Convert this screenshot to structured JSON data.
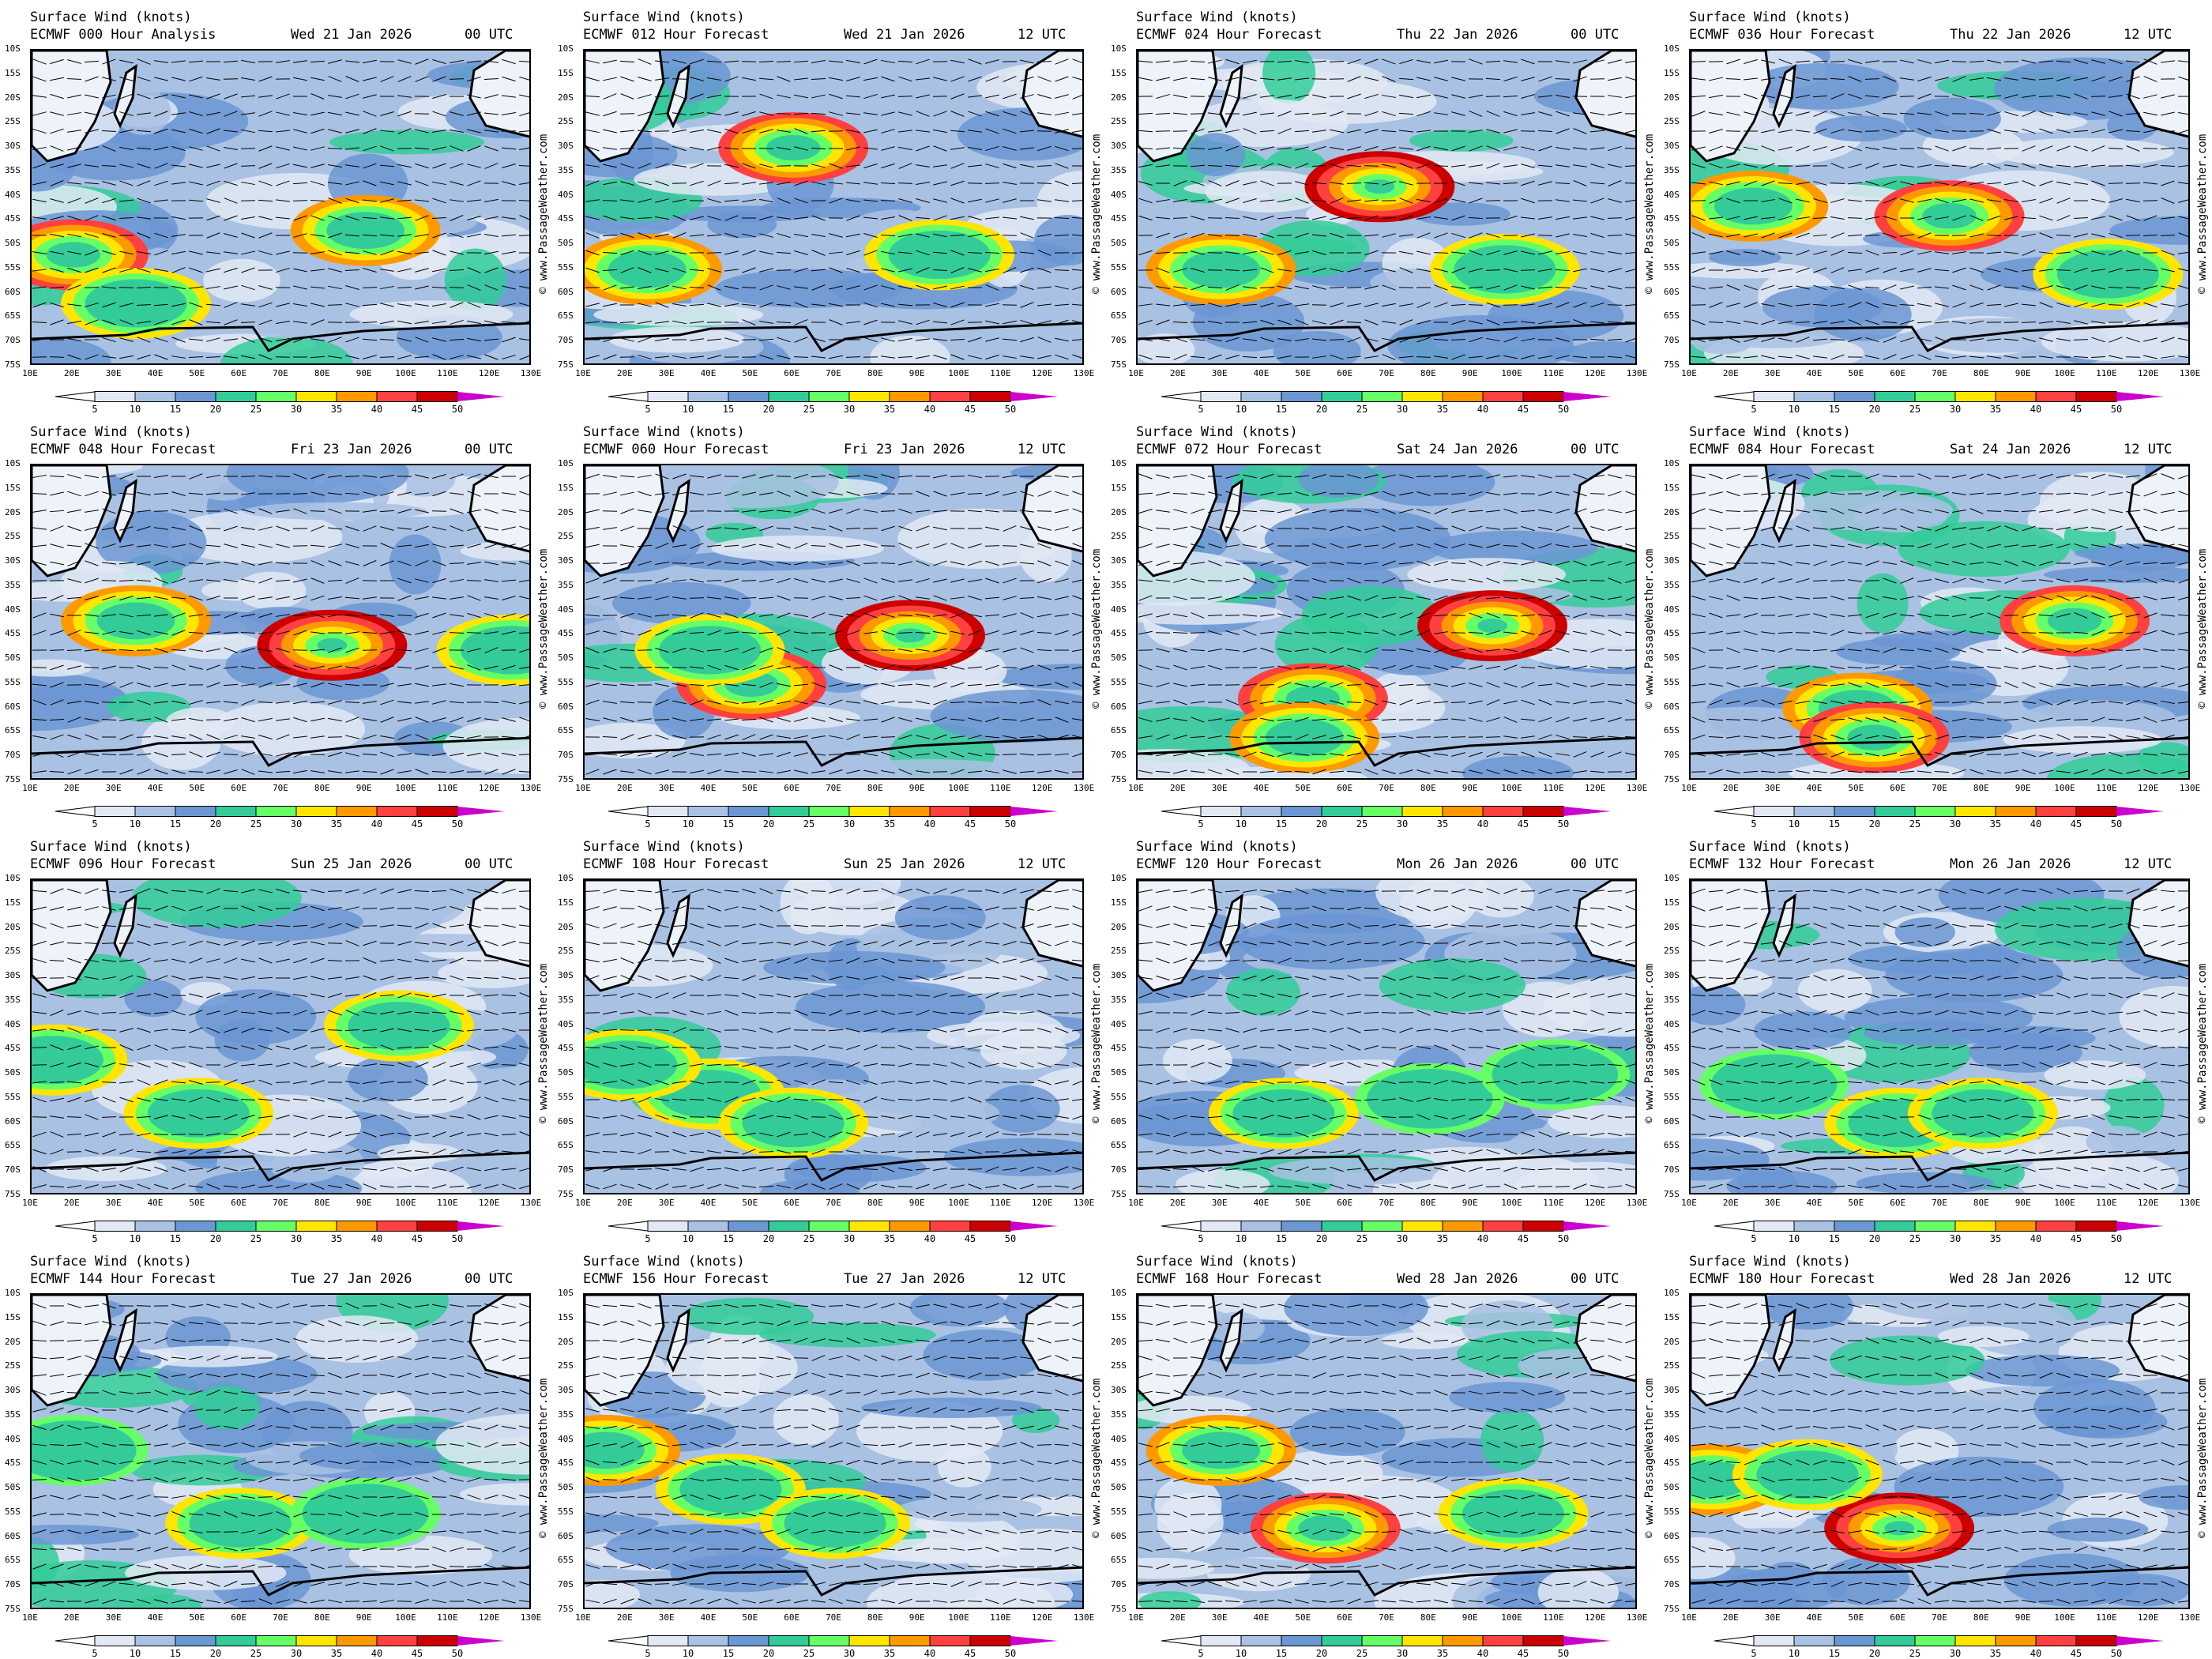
{
  "title": "Surface Wind (knots)",
  "credit": "© www.PassageWeather.com",
  "panels": [
    {
      "model": "ECMWF 000 Hour Analysis",
      "date": "Wed 21 Jan 2026",
      "utc": "00 UTC"
    },
    {
      "model": "ECMWF 012 Hour Forecast",
      "date": "Wed 21 Jan 2026",
      "utc": "12 UTC"
    },
    {
      "model": "ECMWF 024 Hour Forecast",
      "date": "Thu 22 Jan 2026",
      "utc": "00 UTC"
    },
    {
      "model": "ECMWF 036 Hour Forecast",
      "date": "Thu 22 Jan 2026",
      "utc": "12 UTC"
    },
    {
      "model": "ECMWF 048 Hour Forecast",
      "date": "Fri 23 Jan 2026",
      "utc": "00 UTC"
    },
    {
      "model": "ECMWF 060 Hour Forecast",
      "date": "Fri 23 Jan 2026",
      "utc": "12 UTC"
    },
    {
      "model": "ECMWF 072 Hour Forecast",
      "date": "Sat 24 Jan 2026",
      "utc": "00 UTC"
    },
    {
      "model": "ECMWF 084 Hour Forecast",
      "date": "Sat 24 Jan 2026",
      "utc": "12 UTC"
    },
    {
      "model": "ECMWF 096 Hour Forecast",
      "date": "Sun 25 Jan 2026",
      "utc": "00 UTC"
    },
    {
      "model": "ECMWF 108 Hour Forecast",
      "date": "Sun 25 Jan 2026",
      "utc": "12 UTC"
    },
    {
      "model": "ECMWF 120 Hour Forecast",
      "date": "Mon 26 Jan 2026",
      "utc": "00 UTC"
    },
    {
      "model": "ECMWF 132 Hour Forecast",
      "date": "Mon 26 Jan 2026",
      "utc": "12 UTC"
    },
    {
      "model": "ECMWF 144 Hour Forecast",
      "date": "Tue 27 Jan 2026",
      "utc": "00 UTC"
    },
    {
      "model": "ECMWF 156 Hour Forecast",
      "date": "Tue 27 Jan 2026",
      "utc": "12 UTC"
    },
    {
      "model": "ECMWF 168 Hour Forecast",
      "date": "Wed 28 Jan 2026",
      "utc": "00 UTC"
    },
    {
      "model": "ECMWF 180 Hour Forecast",
      "date": "Wed 28 Jan 2026",
      "utc": "12 UTC"
    }
  ],
  "chart_data": {
    "type": "heatmap",
    "title": "Surface Wind (knots)",
    "lat_ticks": [
      "10S",
      "15S",
      "20S",
      "25S",
      "30S",
      "35S",
      "40S",
      "45S",
      "50S",
      "55S",
      "60S",
      "65S",
      "70S",
      "75S"
    ],
    "lon_ticks": [
      "10E",
      "20E",
      "30E",
      "40E",
      "50E",
      "60E",
      "70E",
      "80E",
      "90E",
      "100E",
      "110E",
      "120E",
      "130E"
    ],
    "colorbar": {
      "labels": [
        "5",
        "10",
        "15",
        "20",
        "25",
        "30",
        "35",
        "40",
        "45",
        "50"
      ],
      "colors": [
        "#e2e9f5",
        "#a9c1e3",
        "#6b97d3",
        "#33cc99",
        "#66ff66",
        "#ffe600",
        "#ff9900",
        "#ff4040",
        "#cc0000"
      ],
      "low_color": "#ffffff",
      "high_color": "#cc00cc"
    },
    "max_wind_blobs": [
      [
        [
          20,
          -52,
          40
        ],
        [
          90,
          -47,
          38
        ],
        [
          35,
          -62,
          32
        ]
      ],
      [
        [
          25,
          -55,
          38
        ],
        [
          95,
          -52,
          34
        ],
        [
          60,
          -30,
          40
        ]
      ],
      [
        [
          30,
          -55,
          35
        ],
        [
          98,
          -55,
          33
        ],
        [
          68,
          -38,
          45
        ]
      ],
      [
        [
          25,
          -42,
          36
        ],
        [
          72,
          -44,
          42
        ],
        [
          110,
          -56,
          30
        ]
      ],
      [
        [
          35,
          -42,
          36
        ],
        [
          82,
          -47,
          46
        ],
        [
          125,
          -48,
          30
        ]
      ],
      [
        [
          50,
          -55,
          42
        ],
        [
          88,
          -45,
          48
        ],
        [
          40,
          -48,
          30
        ]
      ],
      [
        [
          52,
          -58,
          40
        ],
        [
          95,
          -43,
          45
        ],
        [
          50,
          -66,
          35
        ]
      ],
      [
        [
          50,
          -60,
          38
        ],
        [
          102,
          -42,
          40
        ],
        [
          54,
          -66,
          40
        ]
      ],
      [
        [
          50,
          -58,
          34
        ],
        [
          98,
          -40,
          34
        ],
        [
          15,
          -47,
          32
        ]
      ],
      [
        [
          40,
          -54,
          34
        ],
        [
          60,
          -60,
          32
        ],
        [
          20,
          -48,
          30
        ]
      ],
      [
        [
          45,
          -58,
          34
        ],
        [
          80,
          -55,
          28
        ],
        [
          110,
          -50,
          25
        ]
      ],
      [
        [
          60,
          -60,
          32
        ],
        [
          80,
          -58,
          30
        ],
        [
          30,
          -52,
          26
        ]
      ],
      [
        [
          60,
          -57,
          32
        ],
        [
          90,
          -55,
          28
        ],
        [
          20,
          -42,
          28
        ]
      ],
      [
        [
          15,
          -42,
          38
        ],
        [
          45,
          -50,
          32
        ],
        [
          70,
          -57,
          30
        ]
      ],
      [
        [
          30,
          -42,
          36
        ],
        [
          55,
          -58,
          44
        ],
        [
          100,
          -55,
          30
        ]
      ],
      [
        [
          15,
          -48,
          38
        ],
        [
          60,
          -58,
          46
        ],
        [
          38,
          -47,
          34
        ]
      ]
    ]
  }
}
